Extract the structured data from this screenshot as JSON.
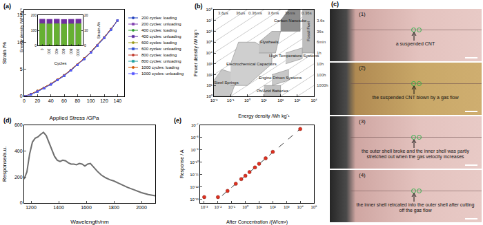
{
  "chart_data": [
    {
      "title": "(a)",
      "type": "line",
      "xlabel": "Applied Stress /GPa",
      "ylabel": "Strain /%",
      "x": [
        0,
        10,
        20,
        30,
        40,
        50,
        60,
        70,
        80,
        90,
        100,
        110,
        120,
        130,
        140
      ],
      "xlim": [
        0,
        150
      ],
      "xticks": [
        0,
        20,
        40,
        60,
        80,
        100,
        120,
        140
      ],
      "ylim": [
        0,
        16
      ],
      "yticks": [
        0,
        5,
        10,
        15
      ],
      "legend": "right",
      "series": [
        {
          "name": "200 cycles: loading",
          "color": "#1f3fbf",
          "marker": "circle",
          "values": [
            0,
            0.4,
            1.0,
            1.6,
            2.3,
            3.1,
            3.9,
            4.9,
            5.9,
            7.0,
            8.2,
            9.5,
            10.9,
            12.4,
            14.0
          ]
        },
        {
          "name": "200 cycles: unloading",
          "color": "#8040b0",
          "marker": "square",
          "values": [
            0,
            0.35,
            0.9,
            1.5,
            2.2,
            3.0,
            3.8,
            4.8,
            5.8,
            6.9,
            8.1,
            9.4,
            10.8,
            12.3,
            14.0
          ]
        },
        {
          "name": "400 cycles: loading",
          "color": "#2e9e2e",
          "marker": "circle",
          "values": [
            0,
            0.4,
            1.0,
            1.6,
            2.3,
            3.1,
            3.9,
            4.9,
            5.9,
            7.0,
            8.2,
            9.5,
            10.9,
            12.4,
            14.0
          ]
        },
        {
          "name": "400 cycles: unloading",
          "color": "#5a2ca0",
          "marker": "square",
          "values": [
            0,
            0.35,
            0.9,
            1.5,
            2.2,
            3.0,
            3.8,
            4.8,
            5.8,
            6.9,
            8.1,
            9.4,
            10.8,
            12.3,
            14.0
          ]
        },
        {
          "name": "600 cycles: loading",
          "color": "#9a9a1a",
          "marker": "circle",
          "values": [
            0,
            0.4,
            1.0,
            1.6,
            2.3,
            3.1,
            3.9,
            4.9,
            5.9,
            7.0,
            8.2,
            9.5,
            10.9,
            12.4,
            14.0
          ]
        },
        {
          "name": "600 cycles: unloading",
          "color": "#3050d0",
          "marker": "square",
          "values": [
            0,
            0.35,
            0.9,
            1.5,
            2.2,
            3.0,
            3.8,
            4.8,
            5.8,
            6.9,
            8.1,
            9.4,
            10.8,
            12.3,
            14.0
          ]
        },
        {
          "name": "800 cycles: loading",
          "color": "#c0392b",
          "marker": "circle",
          "values": [
            0,
            0.4,
            1.0,
            1.6,
            2.3,
            3.1,
            3.9,
            4.9,
            5.9,
            7.0,
            8.2,
            9.5,
            10.9,
            12.4,
            14.0
          ]
        },
        {
          "name": "800 cycles: unloading",
          "color": "#20a0a0",
          "marker": "square",
          "values": [
            0,
            0.35,
            0.9,
            1.5,
            2.2,
            3.0,
            3.8,
            4.8,
            5.8,
            6.9,
            8.1,
            9.4,
            10.8,
            12.3,
            14.0
          ]
        },
        {
          "name": "1000 cycles: loading",
          "color": "#d35400",
          "marker": "circle",
          "values": [
            0,
            0.4,
            1.0,
            1.6,
            2.3,
            3.1,
            3.9,
            4.9,
            5.9,
            7.0,
            8.2,
            9.5,
            10.9,
            12.4,
            14.0
          ]
        },
        {
          "name": "1000 cycles: unloading",
          "color": "#5555ff",
          "marker": "square",
          "values": [
            0,
            0.35,
            0.9,
            1.5,
            2.2,
            3.0,
            3.8,
            4.8,
            5.8,
            6.9,
            8.1,
            9.4,
            10.8,
            12.3,
            14.0
          ]
        }
      ]
    },
    {
      "type": "bar",
      "xlabel": "Cycles",
      "ylabel": "Energy density /Wh kg⁻¹",
      "y2label": "Strain /%",
      "x": [
        0,
        200,
        400,
        600,
        800,
        1000
      ],
      "xlim": [
        -120,
        1120
      ],
      "xticks": [
        0,
        200,
        400,
        600,
        800,
        1000
      ],
      "ylim": [
        0,
        200
      ],
      "yticks": [
        0,
        100,
        200
      ],
      "y2lim": [
        0,
        20
      ],
      "y2ticks": [
        0,
        10,
        20
      ],
      "series": [
        {
          "color": "#7030a0",
          "axis": "y2",
          "values": [
            17.5,
            17.4,
            17.5,
            17.3,
            17.4,
            17.5
          ]
        },
        {
          "color": "#66b032",
          "values": [
            145,
            144,
            145,
            143,
            144,
            145
          ]
        }
      ]
    },
    {
      "title": "(b)",
      "type": "area",
      "xlabel": "Energy density /Wh kg⁻¹",
      "ylabel": "Power density /W kg⁻¹",
      "log": true,
      "xlim": [
        0.01,
        10000
      ],
      "ylim": [
        1,
        100000000
      ],
      "xticks": [
        {
          "value": 0.01,
          "label": "10⁻²"
        },
        {
          "value": 0.1,
          "label": "10⁻¹"
        },
        {
          "value": 1,
          "label": "10⁰"
        },
        {
          "value": 10,
          "label": "10¹"
        },
        {
          "value": 100,
          "label": "10²"
        },
        {
          "value": 1000,
          "label": "10³"
        },
        {
          "value": 10000,
          "label": "10⁴"
        }
      ],
      "yticks": [
        {
          "value": 1,
          "label": "10⁰"
        },
        {
          "value": 10,
          "label": "10¹"
        },
        {
          "value": 100,
          "label": "10²"
        },
        {
          "value": 1000,
          "label": "10³"
        },
        {
          "value": 10000,
          "label": "10⁴"
        },
        {
          "value": 100000,
          "label": "10⁵"
        },
        {
          "value": 1000000,
          "label": "10⁶"
        },
        {
          "value": 10000000,
          "label": "10⁷"
        },
        {
          "value": 100000000,
          "label": "10⁸"
        }
      ],
      "series": [
        {
          "name": "3.6μs",
          "type": "line",
          "color": "#b4b4b4",
          "x": [
            0.01,
            0.1
          ],
          "values": [
            10000000,
            100000000
          ]
        },
        {
          "name": "36μs",
          "type": "line",
          "color": "#b4b4b4",
          "x": [
            0.01,
            1
          ],
          "values": [
            1000000,
            100000000
          ]
        },
        {
          "name": "0.36ms",
          "type": "line",
          "color": "#b4b4b4",
          "x": [
            0.01,
            10
          ],
          "values": [
            100000,
            100000000
          ]
        },
        {
          "name": "3.6ms",
          "type": "line",
          "color": "#b4b4b4",
          "x": [
            0.01,
            100
          ],
          "values": [
            10000,
            100000000
          ]
        },
        {
          "name": "36ms",
          "type": "line",
          "color": "#b4b4b4",
          "x": [
            0.01,
            1000
          ],
          "values": [
            1000,
            100000000
          ]
        },
        {
          "name": "0.36s",
          "type": "line",
          "color": "#b4b4b4",
          "x": [
            0.01,
            10000
          ],
          "values": [
            100,
            100000000
          ]
        },
        {
          "name": "3.6s",
          "type": "line",
          "color": "#b4b4b4",
          "x": [
            0.01,
            10000
          ],
          "values": [
            10,
            10000000
          ]
        },
        {
          "name": "36s",
          "type": "line",
          "color": "#b4b4b4",
          "x": [
            0.01,
            10000
          ],
          "values": [
            1,
            1000000
          ]
        },
        {
          "name": "6min",
          "type": "line",
          "color": "#b4b4b4",
          "x": [
            0.1,
            10000
          ],
          "values": [
            1,
            100000
          ]
        },
        {
          "name": "1h",
          "type": "line",
          "color": "#b4b4b4",
          "x": [
            1,
            10000
          ],
          "values": [
            1,
            10000
          ]
        },
        {
          "name": "10h",
          "type": "line",
          "color": "#b4b4b4",
          "x": [
            10,
            10000
          ],
          "values": [
            1,
            1000
          ]
        },
        {
          "name": "100h",
          "type": "line",
          "color": "#b4b4b4",
          "x": [
            100,
            10000
          ],
          "values": [
            1,
            100
          ]
        },
        {
          "name": "1000h",
          "type": "line",
          "color": "#b4b4b4",
          "x": [
            1000,
            10000
          ],
          "values": [
            1,
            10
          ]
        },
        {
          "name": "Steel Springs",
          "type": "area",
          "color": "#c8c8c8",
          "x": [
            0.01,
            0.1,
            0.3,
            0.03,
            0.01
          ],
          "values": [
            1,
            1,
            100,
            300,
            30
          ]
        },
        {
          "name": "Electrochemical Capacitors",
          "type": "area",
          "color": "#cfcfcf",
          "x": [
            0.1,
            1,
            30,
            30,
            3,
            0.3,
            0.1
          ],
          "values": [
            10,
            10,
            1000,
            10000,
            100000,
            100000,
            1000
          ]
        },
        {
          "name": "Flywheels",
          "type": "area",
          "color": "#c4c4c4",
          "x": [
            5,
            50,
            100,
            30,
            5
          ],
          "values": [
            10000,
            10000,
            1000000,
            1000000,
            100000
          ]
        },
        {
          "name": "Carbon Nanotube",
          "type": "area",
          "color": "#8c8c8c",
          "x": [
            100,
            1500,
            1500,
            300,
            100
          ],
          "values": [
            1000000,
            1000000,
            100000000,
            100000000,
            10000000
          ]
        },
        {
          "name": "Fossil Fuel",
          "type": "area",
          "color": "#bdbdbd",
          "x": [
            2000,
            10000,
            10000,
            2000
          ],
          "values": [
            10000,
            10000,
            100000000,
            100000000
          ]
        },
        {
          "name": "High Temperature Systems",
          "type": "area",
          "color": "#cccccc",
          "x": [
            200,
            2000,
            2000,
            200
          ],
          "values": [
            1000,
            3000,
            30000,
            10000
          ]
        },
        {
          "name": "Engine Driven Systems",
          "type": "area",
          "color": "#c8c8c8",
          "x": [
            30,
            300,
            300,
            30
          ],
          "values": [
            10,
            30,
            300,
            100
          ]
        },
        {
          "name": "Pb/Acid Batteries",
          "type": "area",
          "color": "#c0c0c0",
          "x": [
            10,
            100,
            100,
            10
          ],
          "values": [
            1,
            1,
            10,
            10
          ]
        }
      ]
    },
    {
      "title": "(d)",
      "type": "line",
      "xlabel": "Wavelength/nm",
      "ylabel": "Response/a.u.",
      "color": "#6e6e6e",
      "x": [
        1150,
        1170,
        1190,
        1210,
        1230,
        1250,
        1270,
        1290,
        1310,
        1330,
        1350,
        1370,
        1390,
        1410,
        1430,
        1450,
        1470,
        1490,
        1510,
        1530,
        1550,
        1570,
        1590,
        1610,
        1630,
        1650,
        1680,
        1710,
        1740,
        1770,
        1800,
        1830,
        1860,
        1900,
        1950,
        2000,
        2050,
        2100
      ],
      "values": [
        185,
        240,
        380,
        470,
        500,
        510,
        530,
        545,
        520,
        470,
        420,
        360,
        330,
        320,
        330,
        325,
        310,
        300,
        300,
        295,
        305,
        300,
        285,
        300,
        305,
        280,
        245,
        215,
        195,
        180,
        170,
        155,
        140,
        120,
        100,
        80,
        65,
        55
      ],
      "xlim": [
        1150,
        2100
      ],
      "xticks": [
        1200,
        1400,
        1600,
        1800,
        2000
      ],
      "ylim": [
        0,
        600
      ],
      "yticks": [
        0,
        200,
        400,
        600
      ]
    },
    {
      "title": "(e)",
      "type": "scatter",
      "xlabel": "After Concentration /(W/cm²)",
      "ylabel": "Response / A",
      "log": true,
      "xlim": [
        0.0005,
        100000
      ],
      "ylim": [
        5e-14,
        1e-07
      ],
      "xticks": [
        {
          "value": 0.001,
          "label": "10⁻³"
        },
        {
          "value": 0.01,
          "label": "10⁻²"
        },
        {
          "value": 0.1,
          "label": "10⁻¹"
        },
        {
          "value": 1,
          "label": "10⁰"
        },
        {
          "value": 10,
          "label": "10¹"
        },
        {
          "value": 100,
          "label": "10²"
        },
        {
          "value": 1000,
          "label": "10³"
        },
        {
          "value": 10000,
          "label": "10⁴"
        },
        {
          "value": 100000,
          "label": "10⁵"
        }
      ],
      "yticks": [
        {
          "value": 1e-13,
          "label": "10⁻¹³"
        },
        {
          "value": 1e-12,
          "label": "10⁻¹²"
        },
        {
          "value": 1e-11,
          "label": "10⁻¹¹"
        },
        {
          "value": 1e-10,
          "label": "10⁻¹⁰"
        },
        {
          "value": 1e-09,
          "label": "10⁻⁹"
        },
        {
          "value": 1e-08,
          "label": "10⁻⁸"
        },
        {
          "value": 1e-07,
          "label": "10⁻⁷"
        }
      ],
      "series": [
        {
          "type": "line",
          "line_style": "dashed",
          "color": "#333333",
          "x": [
            0.02,
            10000
          ],
          "values": [
            2e-13,
            5e-08
          ]
        },
        {
          "type": "scatter",
          "marker": "circle",
          "color": "#e03020",
          "x": [
            0.001,
            0.01,
            0.05,
            0.2,
            0.5,
            1,
            2,
            5,
            10,
            30,
            100,
            10000
          ],
          "values": [
            1.5e-13,
            1.5e-13,
            4.8e-13,
            1.8e-12,
            4.3e-12,
            8e-12,
            1.6e-11,
            3.8e-11,
            7.5e-11,
            2.1e-10,
            7e-10,
            5e-08
          ]
        }
      ]
    }
  ],
  "photo_panel": {
    "title": "(c)",
    "frames": [
      {
        "label": "(1)",
        "caption": "a suspended CNT"
      },
      {
        "label": "(2)",
        "caption": "the suspended CNT blown by a gas flow"
      },
      {
        "label": "(3)",
        "caption": "the outer shell broke and the inner shell was partly stretched out when the gas velocity increases"
      },
      {
        "label": "(4)",
        "caption": "the inner shell retrcated into the outer shell after cutting off the gas flow"
      }
    ]
  }
}
